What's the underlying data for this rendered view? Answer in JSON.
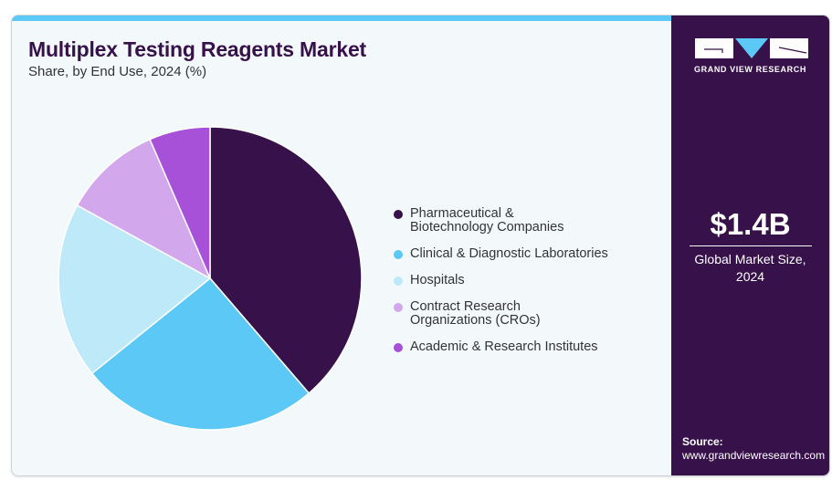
{
  "header": {
    "title": "Multiplex Testing Reagents Market",
    "subtitle": "Share, by End Use, 2024 (%)"
  },
  "brand": {
    "name": "GRAND VIEW RESEARCH",
    "colors": {
      "dark": "#37114a",
      "accent": "#5bc8f5"
    }
  },
  "market": {
    "value": "$1.4B",
    "label_line1": "Global Market Size,",
    "label_line2": "2024"
  },
  "source": {
    "label": "Source:",
    "url": "www.grandviewresearch.com"
  },
  "chart_data": {
    "type": "pie",
    "title": "Multiplex Testing Reagents Market",
    "subtitle": "Share, by End Use, 2024 (%)",
    "start_angle": "12 o'clock, clockwise",
    "legend_placement": "right",
    "categories": [
      "Pharmaceutical & Biotechnology Companies",
      "Clinical & Diagnostic Laboratories",
      "Hospitals",
      "Contract Research Organizations (CROs)",
      "Academic & Research Institutes"
    ],
    "legend_lines": [
      [
        "Pharmaceutical &",
        "Biotechnology Companies"
      ],
      [
        "Clinical & Diagnostic Laboratories"
      ],
      [
        "Hospitals"
      ],
      [
        "Contract Research",
        "Organizations (CROs)"
      ],
      [
        "Academic & Research Institutes"
      ]
    ],
    "values": [
      38.7,
      25.5,
      18.8,
      10.5,
      6.5
    ],
    "colors": [
      "#37114a",
      "#5bc8f5",
      "#bde9f8",
      "#d3a7ec",
      "#a651d8"
    ]
  }
}
